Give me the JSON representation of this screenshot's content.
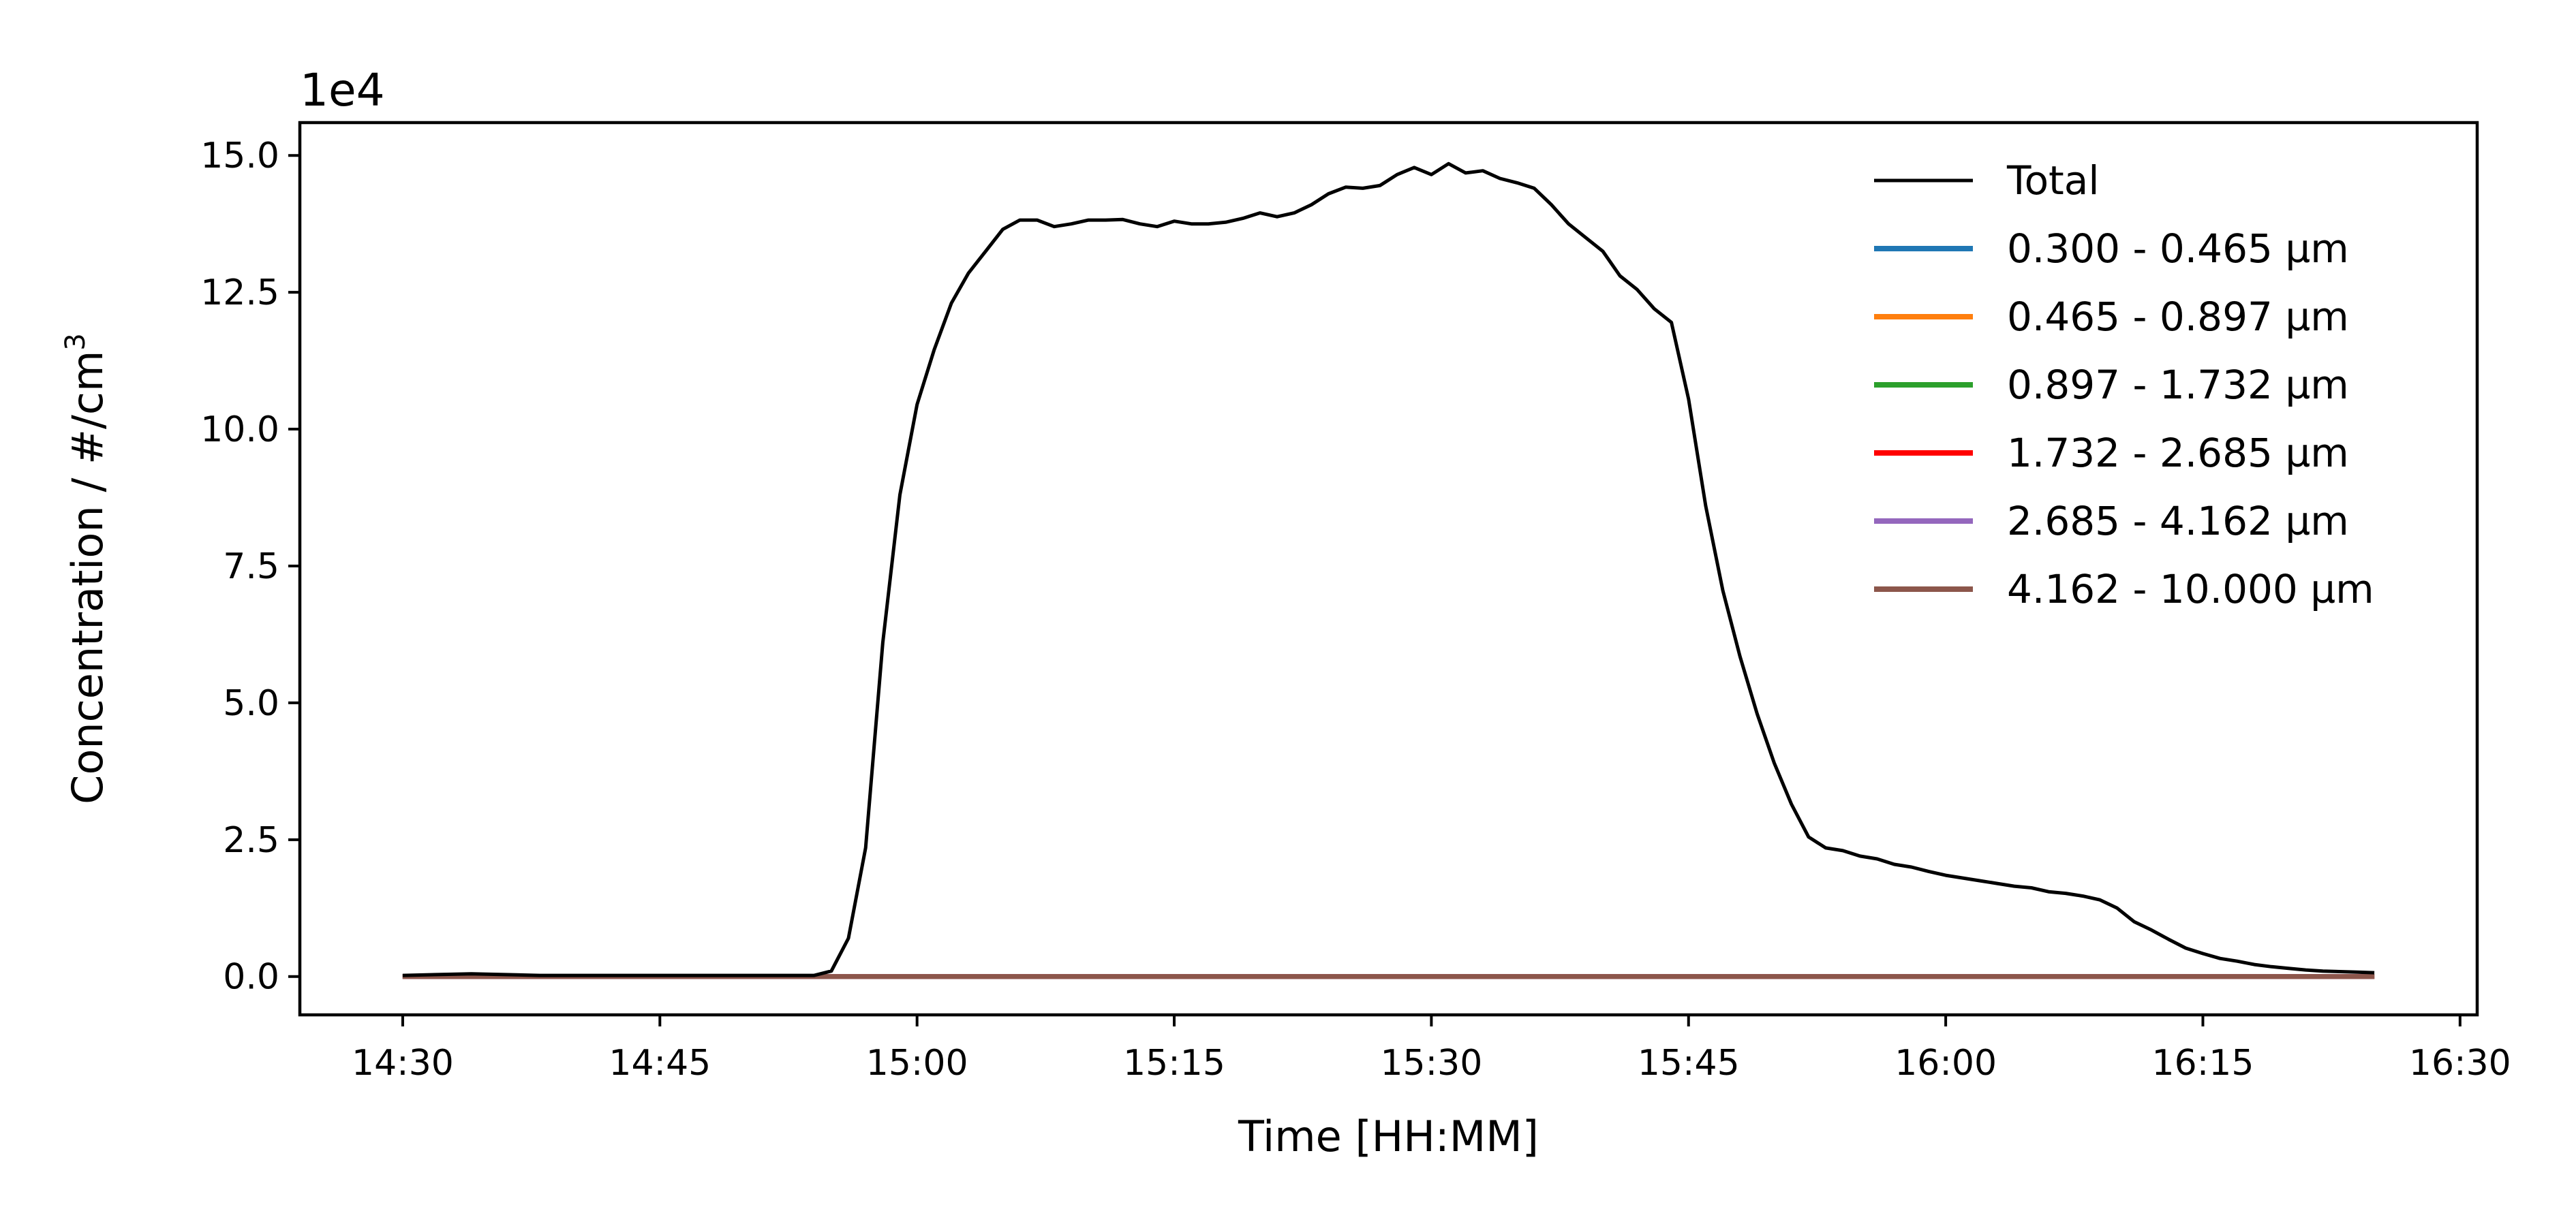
{
  "chart_data": {
    "type": "line",
    "title": "",
    "xlabel": "Time [HH:MM]",
    "ylabel": "Concentration / #/cm³",
    "ylabel_base": "Concentration / #/cm",
    "ylabel_sup": "3",
    "y_offset_label": "1e4",
    "x_unit": "HH:MM",
    "xlim": [
      "14:24",
      "16:31"
    ],
    "ylim": [
      -0.7,
      15.6
    ],
    "x_ticks": [
      "14:30",
      "14:45",
      "15:00",
      "15:15",
      "15:30",
      "15:45",
      "16:00",
      "16:15",
      "16:30"
    ],
    "y_ticks": [
      0.0,
      2.5,
      5.0,
      7.5,
      10.0,
      12.5,
      15.0
    ],
    "y_tick_labels": [
      "0.0",
      "2.5",
      "5.0",
      "7.5",
      "10.0",
      "12.5",
      "15.0"
    ],
    "grid": false,
    "legend_position": "top-right",
    "series": [
      {
        "name": "Total",
        "color": "#000000",
        "x": [
          "14:30",
          "14:34",
          "14:38",
          "14:42",
          "14:46",
          "14:50",
          "14:54",
          "14:55",
          "14:56",
          "14:57",
          "14:58",
          "14:59",
          "15:00",
          "15:01",
          "15:02",
          "15:03",
          "15:04",
          "15:05",
          "15:06",
          "15:07",
          "15:08",
          "15:09",
          "15:10",
          "15:11",
          "15:12",
          "15:13",
          "15:14",
          "15:15",
          "15:16",
          "15:17",
          "15:18",
          "15:19",
          "15:20",
          "15:21",
          "15:22",
          "15:23",
          "15:24",
          "15:25",
          "15:26",
          "15:27",
          "15:28",
          "15:29",
          "15:30",
          "15:31",
          "15:32",
          "15:33",
          "15:34",
          "15:35",
          "15:36",
          "15:37",
          "15:38",
          "15:39",
          "15:40",
          "15:41",
          "15:42",
          "15:43",
          "15:44",
          "15:45",
          "15:46",
          "15:47",
          "15:48",
          "15:49",
          "15:50",
          "15:51",
          "15:52",
          "15:53",
          "15:54",
          "15:55",
          "15:56",
          "15:57",
          "15:58",
          "15:59",
          "16:00",
          "16:01",
          "16:02",
          "16:03",
          "16:04",
          "16:05",
          "16:06",
          "16:07",
          "16:08",
          "16:09",
          "16:10",
          "16:11",
          "16:12",
          "16:13",
          "16:14",
          "16:15",
          "16:16",
          "16:17",
          "16:18",
          "16:19",
          "16:20",
          "16:21",
          "16:22",
          "16:23",
          "16:24",
          "16:25"
        ],
        "y": [
          0.02,
          0.05,
          0.02,
          0.02,
          0.02,
          0.02,
          0.02,
          0.1,
          0.7,
          2.35,
          6.1,
          8.8,
          10.45,
          11.45,
          12.3,
          12.85,
          13.25,
          13.65,
          13.82,
          13.82,
          13.7,
          13.75,
          13.82,
          13.82,
          13.83,
          13.75,
          13.7,
          13.8,
          13.75,
          13.75,
          13.78,
          13.85,
          13.95,
          13.88,
          13.95,
          14.1,
          14.3,
          14.42,
          14.4,
          14.45,
          14.65,
          14.78,
          14.65,
          14.85,
          14.68,
          14.72,
          14.58,
          14.5,
          14.4,
          14.1,
          13.75,
          13.5,
          13.25,
          12.8,
          12.55,
          12.2,
          11.95,
          10.55,
          8.6,
          7.05,
          5.85,
          4.8,
          3.9,
          3.15,
          2.55,
          2.35,
          2.3,
          2.2,
          2.15,
          2.05,
          2.0,
          1.92,
          1.85,
          1.8,
          1.75,
          1.7,
          1.65,
          1.62,
          1.55,
          1.52,
          1.47,
          1.4,
          1.25,
          1.0,
          0.85,
          0.68,
          0.52,
          0.42,
          0.33,
          0.28,
          0.22,
          0.18,
          0.15,
          0.12,
          0.1,
          0.09,
          0.08,
          0.07
        ]
      },
      {
        "name": "0.300 - 0.465 µm",
        "color": "#1f77b4",
        "x": [
          "14:30",
          "16:25"
        ],
        "y": [
          0.0,
          0.0
        ]
      },
      {
        "name": "0.465 - 0.897 µm",
        "color": "#ff7f0e",
        "x": [
          "14:30",
          "16:25"
        ],
        "y": [
          0.0,
          0.0
        ]
      },
      {
        "name": "0.897 - 1.732 µm",
        "color": "#2ca02c",
        "x": [
          "14:30",
          "16:25"
        ],
        "y": [
          0.0,
          0.0
        ]
      },
      {
        "name": "1.732 - 2.685 µm",
        "color": "#ff0000",
        "x": [
          "14:30",
          "16:25"
        ],
        "y": [
          0.0,
          0.0
        ]
      },
      {
        "name": "2.685 - 4.162 µm",
        "color": "#9467bd",
        "x": [
          "14:30",
          "16:25"
        ],
        "y": [
          0.0,
          0.0
        ]
      },
      {
        "name": "4.162 - 10.000 µm",
        "color": "#8c564b",
        "x": [
          "14:30",
          "16:25"
        ],
        "y": [
          0.0,
          0.0
        ]
      }
    ]
  }
}
